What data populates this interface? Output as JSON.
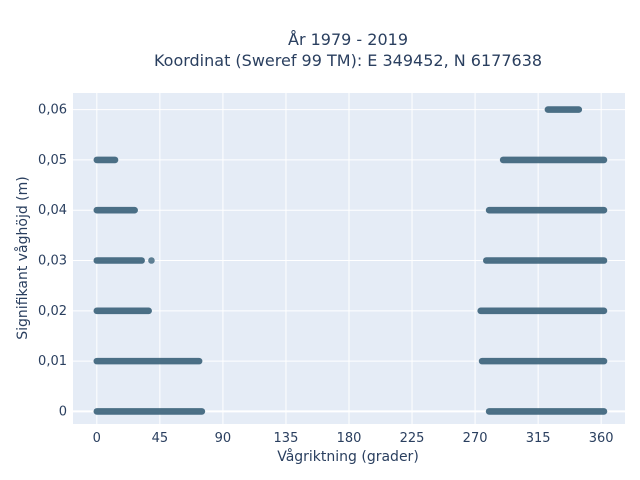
{
  "chart_data": {
    "type": "scatter",
    "title_line1": "År 1979 - 2019",
    "title_line2": "Koordinat (Sweref 99 TM): E 349452, N 6177638",
    "xlabel": "Vågriktning (grader)",
    "ylabel": "Signifikant våghöjd (m)",
    "xlim": [
      -17,
      377
    ],
    "ylim": [
      -0.0025,
      0.0633
    ],
    "x_ticks": [
      0,
      45,
      90,
      135,
      180,
      225,
      270,
      315,
      360
    ],
    "x_tick_labels": [
      "0",
      "45",
      "90",
      "135",
      "180",
      "225",
      "270",
      "315",
      "360"
    ],
    "y_ticks": [
      0,
      0.01,
      0.02,
      0.03,
      0.04,
      0.05,
      0.06
    ],
    "y_tick_labels": [
      "0",
      "0,01",
      "0,02",
      "0,03",
      "0,04",
      "0,05",
      "0,06"
    ],
    "grid": true,
    "marker_color": "#2f5972",
    "series": [
      {
        "bands": [
          {
            "y": 0.0,
            "ranges": [
              [
                0,
                75
              ],
              [
                280,
                362
              ]
            ]
          },
          {
            "y": 0.01,
            "ranges": [
              [
                0,
                73
              ],
              [
                275,
                362
              ]
            ]
          },
          {
            "y": 0.02,
            "ranges": [
              [
                0,
                37
              ],
              [
                274,
                362
              ]
            ]
          },
          {
            "y": 0.03,
            "ranges": [
              [
                0,
                32
              ],
              [
                278,
                362
              ]
            ]
          },
          {
            "y": 0.04,
            "ranges": [
              [
                0,
                27
              ],
              [
                280,
                362
              ]
            ]
          },
          {
            "y": 0.05,
            "ranges": [
              [
                0,
                13
              ],
              [
                290,
                362
              ]
            ]
          },
          {
            "y": 0.06,
            "ranges": [
              [
                322,
                344
              ]
            ]
          }
        ],
        "points": [
          [
            39,
            0.03
          ]
        ]
      }
    ]
  }
}
